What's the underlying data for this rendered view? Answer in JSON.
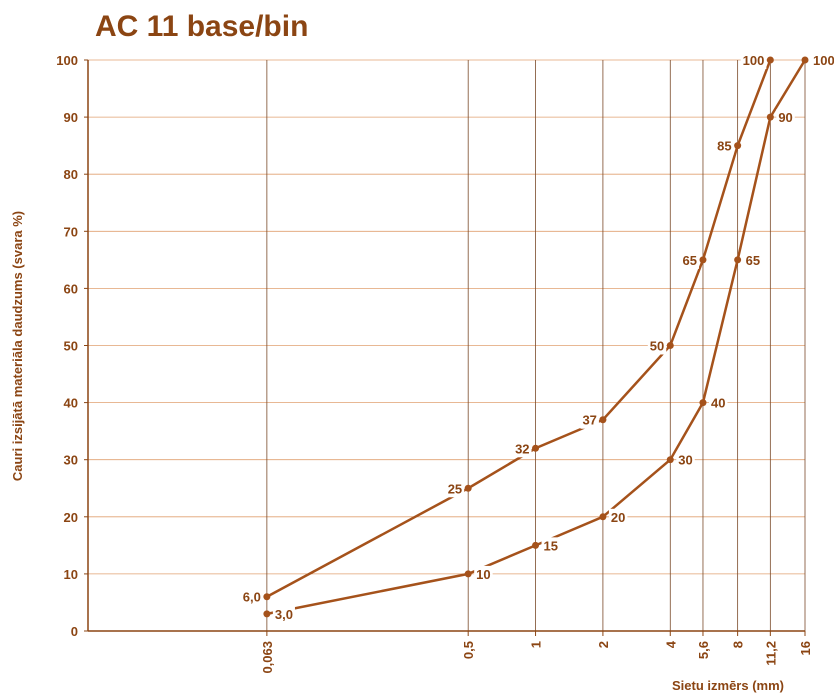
{
  "chart_data": {
    "type": "line",
    "title": "AC 11 base/bin",
    "x_label": "Sietu izmērs (mm)",
    "y_label": "Cauri izsijātā materiāla daudzums (svara %)",
    "log_x": true,
    "grid": true,
    "color": "#a5521b",
    "xlim": [
      0.01,
      16
    ],
    "ylim": [
      0,
      100
    ],
    "xticks": [
      {
        "value": 0.063,
        "label": "0,063"
      },
      {
        "value": 0.5,
        "label": "0,5"
      },
      1,
      2,
      4,
      {
        "value": 5.6,
        "label": "5,6"
      },
      8,
      {
        "value": 11.2,
        "label": "11,2"
      },
      16
    ],
    "yticks": [
      0,
      10,
      20,
      30,
      40,
      50,
      60,
      70,
      80,
      90,
      100
    ],
    "series": [
      {
        "color": "#a5521b",
        "x": [
          0.063,
          0.5,
          1,
          2,
          4,
          5.6,
          8,
          11.2
        ],
        "values": [
          6,
          25,
          32,
          37,
          50,
          65,
          85,
          100
        ],
        "value_labels": [
          "6,0",
          "25",
          "32",
          "37",
          "50",
          "65",
          "85",
          "100"
        ]
      },
      {
        "color": "#a5521b",
        "x": [
          0.063,
          0.5,
          1,
          2,
          4,
          5.6,
          8,
          11.2,
          16
        ],
        "values": [
          3,
          10,
          15,
          20,
          30,
          40,
          65,
          90,
          100
        ],
        "value_labels": [
          "3,0",
          "10",
          "15",
          "20",
          "30",
          "40",
          "65",
          "90",
          "100"
        ]
      }
    ]
  }
}
